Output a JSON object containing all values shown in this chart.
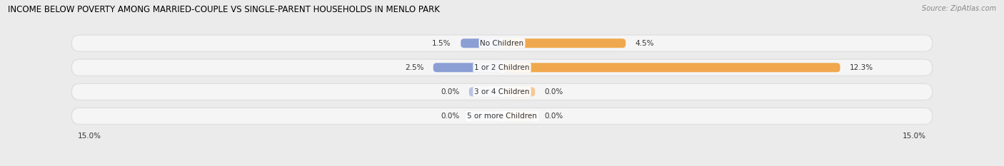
{
  "title": "INCOME BELOW POVERTY AMONG MARRIED-COUPLE VS SINGLE-PARENT HOUSEHOLDS IN MENLO PARK",
  "source": "Source: ZipAtlas.com",
  "categories": [
    "No Children",
    "1 or 2 Children",
    "3 or 4 Children",
    "5 or more Children"
  ],
  "married_values": [
    1.5,
    2.5,
    0.0,
    0.0
  ],
  "single_values": [
    4.5,
    12.3,
    0.0,
    0.0
  ],
  "married_color": "#8b9fd4",
  "single_color": "#f0a84e",
  "married_stub_color": "#b8c4e4",
  "single_stub_color": "#f5c898",
  "axis_max": 15.0,
  "bg_color": "#ebebeb",
  "row_bg_color": "#e0e0e0",
  "row_inner_color": "#f5f5f5",
  "title_fontsize": 8.5,
  "source_fontsize": 7.0,
  "label_fontsize": 7.5,
  "category_fontsize": 7.5,
  "axis_fontsize": 7.5,
  "stub_size": 1.2
}
